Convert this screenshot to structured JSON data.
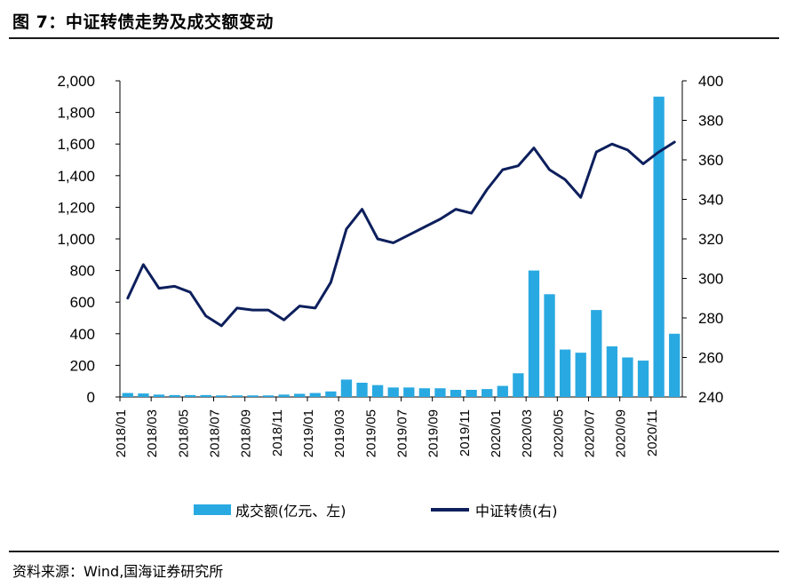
{
  "figure": {
    "title": "图 7：中证转债走势及成交额变动",
    "source": "资料来源：Wind,国海证券研究所"
  },
  "chart_data": {
    "type": "bar+line",
    "left_axis": {
      "ylim": [
        0,
        2000
      ],
      "ticks": [
        "0",
        "200",
        "400",
        "600",
        "800",
        "1,000",
        "1,200",
        "1,400",
        "1,600",
        "1,800",
        "2,000"
      ]
    },
    "right_axis": {
      "ylim": [
        240,
        400
      ],
      "ticks": [
        "240",
        "260",
        "280",
        "300",
        "320",
        "340",
        "360",
        "380",
        "400"
      ]
    },
    "x_ticks": [
      "2018/01",
      "2018/03",
      "2018/05",
      "2018/07",
      "2018/09",
      "2018/11",
      "2019/01",
      "2019/03",
      "2019/05",
      "2019/07",
      "2019/09",
      "2019/11",
      "2020/01",
      "2020/03",
      "2020/05",
      "2020/07",
      "2020/09",
      "2020/11"
    ],
    "x_months": [
      "2018/01",
      "2018/02",
      "2018/03",
      "2018/04",
      "2018/05",
      "2018/06",
      "2018/07",
      "2018/08",
      "2018/09",
      "2018/10",
      "2018/11",
      "2018/12",
      "2019/01",
      "2019/02",
      "2019/03",
      "2019/04",
      "2019/05",
      "2019/06",
      "2019/07",
      "2019/08",
      "2019/09",
      "2019/10",
      "2019/11",
      "2019/12",
      "2020/01",
      "2020/02",
      "2020/03",
      "2020/04",
      "2020/05",
      "2020/06",
      "2020/07",
      "2020/08",
      "2020/09",
      "2020/10",
      "2020/11",
      "2020/12"
    ],
    "series": [
      {
        "name": "成交额(亿元、左)",
        "type": "bar",
        "axis": "left",
        "color": "#29a9e1",
        "x": [
          "2018/01",
          "2018/02",
          "2018/03",
          "2018/04",
          "2018/05",
          "2018/06",
          "2018/07",
          "2018/08",
          "2018/09",
          "2018/10",
          "2018/11",
          "2018/12",
          "2019/01",
          "2019/02",
          "2019/03",
          "2019/04",
          "2019/05",
          "2019/06",
          "2019/07",
          "2019/08",
          "2019/09",
          "2019/10",
          "2019/11",
          "2019/12",
          "2020/01",
          "2020/02",
          "2020/03",
          "2020/04",
          "2020/05",
          "2020/06",
          "2020/07",
          "2020/08",
          "2020/09",
          "2020/10",
          "2020/11",
          "2020/12"
        ],
        "values": [
          25,
          22,
          15,
          12,
          12,
          12,
          10,
          10,
          10,
          10,
          15,
          20,
          25,
          35,
          110,
          90,
          75,
          60,
          60,
          55,
          55,
          45,
          45,
          50,
          70,
          150,
          800,
          650,
          300,
          280,
          550,
          320,
          250,
          230,
          1900,
          400
        ]
      },
      {
        "name": "中证转债(右)",
        "type": "line",
        "axis": "right",
        "color": "#0d1f5c",
        "x": [
          "2018/01",
          "2018/02",
          "2018/03",
          "2018/04",
          "2018/05",
          "2018/06",
          "2018/07",
          "2018/08",
          "2018/09",
          "2018/10",
          "2018/11",
          "2018/12",
          "2019/01",
          "2019/02",
          "2019/03",
          "2019/04",
          "2019/05",
          "2019/06",
          "2019/07",
          "2019/08",
          "2019/09",
          "2019/10",
          "2019/11",
          "2019/12",
          "2020/01",
          "2020/02",
          "2020/03",
          "2020/04",
          "2020/05",
          "2020/06",
          "2020/07",
          "2020/08",
          "2020/09",
          "2020/10",
          "2020/11",
          "2020/12"
        ],
        "values": [
          290,
          307,
          295,
          296,
          293,
          281,
          276,
          285,
          284,
          284,
          279,
          286,
          285,
          298,
          325,
          335,
          320,
          318,
          322,
          326,
          330,
          335,
          333,
          345,
          355,
          357,
          366,
          355,
          350,
          341,
          364,
          368,
          365,
          358,
          364,
          369
        ]
      }
    ]
  },
  "legend": {
    "bar_label": "成交额(亿元、左)",
    "line_label": "中证转债(右)"
  }
}
